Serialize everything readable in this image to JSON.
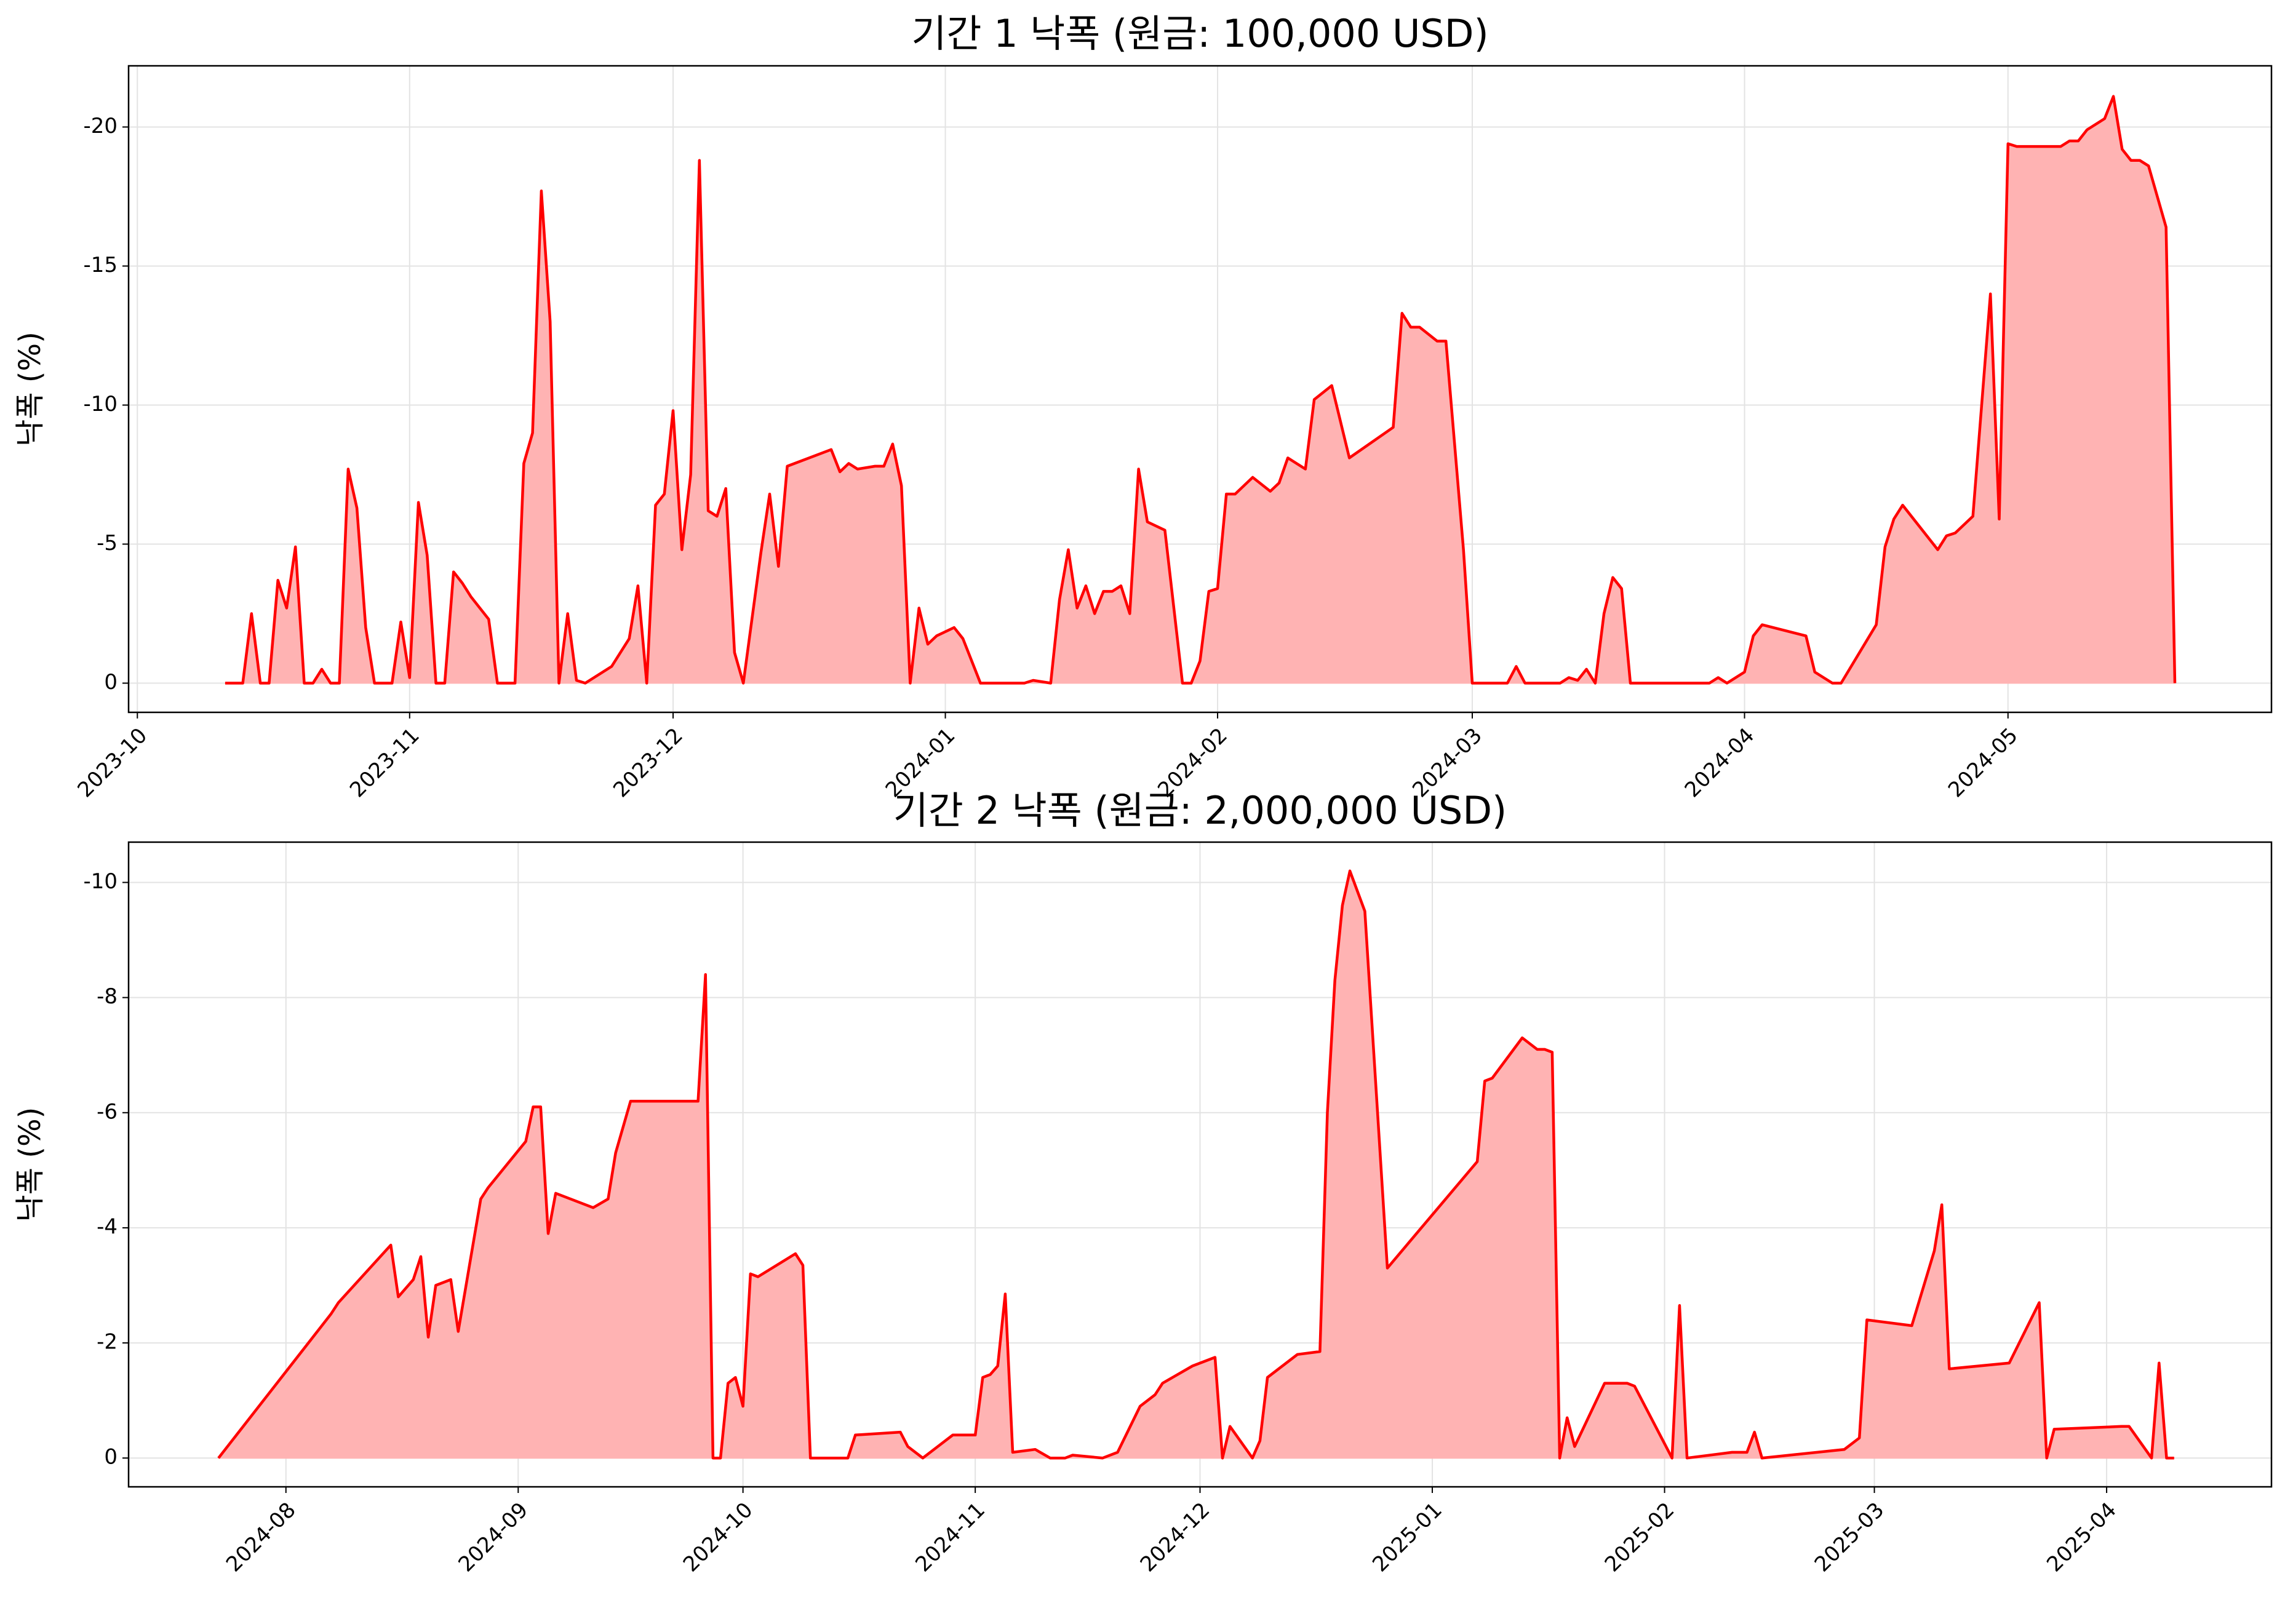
{
  "chart_data": [
    {
      "type": "area",
      "title": "기간 1 낙폭 (원금: 100,000 USD)",
      "y_label": "낙폭 (%)",
      "color": "red",
      "fill_color": "#ffb3b3",
      "grid": true,
      "xlim": [
        "2023-09-30",
        "2024-05-31"
      ],
      "xticks": [
        {
          "value": "2023-10-01",
          "label": "2023-10"
        },
        {
          "value": "2023-11-01",
          "label": "2023-11"
        },
        {
          "value": "2023-12-01",
          "label": "2023-12"
        },
        {
          "value": "2024-01-01",
          "label": "2024-01"
        },
        {
          "value": "2024-02-01",
          "label": "2024-02"
        },
        {
          "value": "2024-03-01",
          "label": "2024-03"
        },
        {
          "value": "2024-04-01",
          "label": "2024-04"
        },
        {
          "value": "2024-05-01",
          "label": "2024-05"
        }
      ],
      "ylim": [
        1.05,
        -22.2
      ],
      "yticks": [
        -20,
        -15,
        -10,
        -5,
        0
      ],
      "x": [
        "2023-10-11",
        "2023-10-13",
        "2023-10-14",
        "2023-10-15",
        "2023-10-16",
        "2023-10-17",
        "2023-10-18",
        "2023-10-19",
        "2023-10-20",
        "2023-10-21",
        "2023-10-22",
        "2023-10-23",
        "2023-10-24",
        "2023-10-25",
        "2023-10-26",
        "2023-10-27",
        "2023-10-28",
        "2023-10-30",
        "2023-10-31",
        "2023-11-01",
        "2023-11-02",
        "2023-11-03",
        "2023-11-04",
        "2023-11-05",
        "2023-11-06",
        "2023-11-07",
        "2023-11-08",
        "2023-11-10",
        "2023-11-11",
        "2023-11-13",
        "2023-11-14",
        "2023-11-15",
        "2023-11-16",
        "2023-11-17",
        "2023-11-18",
        "2023-11-19",
        "2023-11-20",
        "2023-11-21",
        "2023-11-24",
        "2023-11-26",
        "2023-11-27",
        "2023-11-28",
        "2023-11-29",
        "2023-11-30",
        "2023-12-01",
        "2023-12-02",
        "2023-12-03",
        "2023-12-04",
        "2023-12-05",
        "2023-12-06",
        "2023-12-07",
        "2023-12-08",
        "2023-12-09",
        "2023-12-11",
        "2023-12-12",
        "2023-12-13",
        "2023-12-14",
        "2023-12-19",
        "2023-12-20",
        "2023-12-21",
        "2023-12-22",
        "2023-12-24",
        "2023-12-25",
        "2023-12-26",
        "2023-12-27",
        "2023-12-28",
        "2023-12-29",
        "2023-12-30",
        "2023-12-31",
        "2024-01-02",
        "2024-01-03",
        "2024-01-05",
        "2024-01-10",
        "2024-01-11",
        "2024-01-13",
        "2024-01-14",
        "2024-01-15",
        "2024-01-16",
        "2024-01-17",
        "2024-01-18",
        "2024-01-19",
        "2024-01-20",
        "2024-01-21",
        "2024-01-22",
        "2024-01-23",
        "2024-01-24",
        "2024-01-26",
        "2024-01-28",
        "2024-01-29",
        "2024-01-30",
        "2024-01-31",
        "2024-02-01",
        "2024-02-02",
        "2024-02-03",
        "2024-02-05",
        "2024-02-07",
        "2024-02-08",
        "2024-02-09",
        "2024-02-11",
        "2024-02-12",
        "2024-02-14",
        "2024-02-16",
        "2024-02-21",
        "2024-02-22",
        "2024-02-23",
        "2024-02-24",
        "2024-02-26",
        "2024-02-27",
        "2024-02-29",
        "2024-03-01",
        "2024-03-05",
        "2024-03-06",
        "2024-03-07",
        "2024-03-11",
        "2024-03-12",
        "2024-03-13",
        "2024-03-14",
        "2024-03-15",
        "2024-03-16",
        "2024-03-17",
        "2024-03-18",
        "2024-03-19",
        "2024-03-28",
        "2024-03-29",
        "2024-03-30",
        "2024-04-01",
        "2024-04-02",
        "2024-04-03",
        "2024-04-08",
        "2024-04-09",
        "2024-04-11",
        "2024-04-12",
        "2024-04-16",
        "2024-04-17",
        "2024-04-18",
        "2024-04-19",
        "2024-04-23",
        "2024-04-24",
        "2024-04-25",
        "2024-04-27",
        "2024-04-29",
        "2024-04-30",
        "2024-05-01",
        "2024-05-02",
        "2024-05-07",
        "2024-05-08",
        "2024-05-09",
        "2024-05-10",
        "2024-05-12",
        "2024-05-13",
        "2024-05-14",
        "2024-05-15",
        "2024-05-16",
        "2024-05-17",
        "2024-05-19",
        "2024-05-20"
      ],
      "values": [
        0,
        0,
        -2.5,
        0,
        0,
        -3.7,
        -2.7,
        -4.9,
        0,
        0,
        -0.5,
        0,
        0,
        -7.7,
        -6.3,
        -2,
        0,
        0,
        -2.2,
        -0.2,
        -6.5,
        -4.6,
        0,
        0,
        -4,
        -3.6,
        -3.1,
        -2.3,
        0,
        0,
        -7.9,
        -9,
        -17.7,
        -13,
        0,
        -2.5,
        -0.1,
        0,
        -0.6,
        -1.6,
        -3.5,
        0,
        -6.4,
        -6.8,
        -9.8,
        -4.8,
        -7.5,
        -18.8,
        -6.2,
        -6,
        -7,
        -1.1,
        0,
        -4.7,
        -6.8,
        -4.2,
        -7.8,
        -8.4,
        -7.6,
        -7.9,
        -7.7,
        -7.8,
        -7.8,
        -8.6,
        -7.1,
        0,
        -2.7,
        -1.4,
        -1.7,
        -2,
        -1.6,
        0,
        0,
        -0.1,
        0,
        -3,
        -4.8,
        -2.7,
        -3.5,
        -2.5,
        -3.3,
        -3.3,
        -3.5,
        -2.5,
        -7.7,
        -5.8,
        -5.5,
        0,
        0,
        -0.8,
        -3.3,
        -3.4,
        -6.8,
        -6.8,
        -7.4,
        -6.9,
        -7.2,
        -8.1,
        -7.7,
        -10.2,
        -10.7,
        -8.1,
        -9.2,
        -13.3,
        -12.8,
        -12.8,
        -12.3,
        -12.3,
        -4.8,
        0,
        0,
        -0.6,
        0,
        0,
        -0.2,
        -0.1,
        -0.5,
        0,
        -2.5,
        -3.8,
        -3.4,
        0,
        0,
        -0.2,
        0,
        -0.4,
        -1.7,
        -2.1,
        -1.7,
        -0.4,
        0,
        0,
        -2.1,
        -4.9,
        -5.9,
        -6.4,
        -4.8,
        -5.3,
        -5.4,
        -6,
        -14,
        -5.9,
        -19.4,
        -19.3,
        -19.3,
        -19.5,
        -19.5,
        -19.9,
        -20.3,
        -21.1,
        -19.2,
        -18.8,
        -18.8,
        -18.6,
        -16.4,
        0
      ]
    },
    {
      "type": "area",
      "title": "기간 2 낙폭 (원금: 2,000,000 USD)",
      "y_label": "낙폭 (%)",
      "color": "red",
      "fill_color": "#ffb3b3",
      "grid": true,
      "xlim": [
        "2024-07-11",
        "2025-04-23"
      ],
      "xticks": [
        {
          "value": "2024-08-01",
          "label": "2024-08"
        },
        {
          "value": "2024-09-01",
          "label": "2024-09"
        },
        {
          "value": "2024-10-01",
          "label": "2024-10"
        },
        {
          "value": "2024-11-01",
          "label": "2024-11"
        },
        {
          "value": "2024-12-01",
          "label": "2024-12"
        },
        {
          "value": "2025-01-01",
          "label": "2025-01"
        },
        {
          "value": "2025-02-01",
          "label": "2025-02"
        },
        {
          "value": "2025-03-01",
          "label": "2025-03"
        },
        {
          "value": "2025-04-01",
          "label": "2025-04"
        }
      ],
      "ylim": [
        0.5,
        -10.7
      ],
      "yticks": [
        -10,
        -8,
        -6,
        -4,
        -2,
        0
      ],
      "x": [
        "2024-07-23",
        "2024-08-07",
        "2024-08-08",
        "2024-08-15",
        "2024-08-16",
        "2024-08-18",
        "2024-08-19",
        "2024-08-20",
        "2024-08-21",
        "2024-08-23",
        "2024-08-24",
        "2024-08-27",
        "2024-08-28",
        "2024-09-02",
        "2024-09-03",
        "2024-09-04",
        "2024-09-05",
        "2024-09-06",
        "2024-09-11",
        "2024-09-13",
        "2024-09-14",
        "2024-09-16",
        "2024-09-25",
        "2024-09-26",
        "2024-09-27",
        "2024-09-28",
        "2024-09-29",
        "2024-09-30",
        "2024-10-01",
        "2024-10-02",
        "2024-10-03",
        "2024-10-08",
        "2024-10-09",
        "2024-10-10",
        "2024-10-15",
        "2024-10-16",
        "2024-10-22",
        "2024-10-23",
        "2024-10-25",
        "2024-10-29",
        "2024-11-01",
        "2024-11-02",
        "2024-11-03",
        "2024-11-04",
        "2024-11-05",
        "2024-11-06",
        "2024-11-09",
        "2024-11-11",
        "2024-11-13",
        "2024-11-14",
        "2024-11-18",
        "2024-11-20",
        "2024-11-23",
        "2024-11-25",
        "2024-11-26",
        "2024-11-30",
        "2024-12-03",
        "2024-12-04",
        "2024-12-05",
        "2024-12-08",
        "2024-12-09",
        "2024-12-10",
        "2024-12-14",
        "2024-12-17",
        "2024-12-18",
        "2024-12-19",
        "2024-12-20",
        "2024-12-21",
        "2024-12-23",
        "2024-12-26",
        "2025-01-07",
        "2025-01-08",
        "2025-01-09",
        "2025-01-13",
        "2025-01-15",
        "2025-01-16",
        "2025-01-17",
        "2025-01-18",
        "2025-01-19",
        "2025-01-20",
        "2025-01-24",
        "2025-01-27",
        "2025-01-28",
        "2025-02-02",
        "2025-02-03",
        "2025-02-04",
        "2025-02-10",
        "2025-02-12",
        "2025-02-13",
        "2025-02-14",
        "2025-02-25",
        "2025-02-27",
        "2025-02-28",
        "2025-03-06",
        "2025-03-09",
        "2025-03-10",
        "2025-03-11",
        "2025-03-19",
        "2025-03-23",
        "2025-03-24",
        "2025-03-25",
        "2025-04-03",
        "2025-04-04",
        "2025-04-07",
        "2025-04-08",
        "2025-04-09",
        "2025-04-10"
      ],
      "values": [
        0,
        -2.5,
        -2.7,
        -3.7,
        -2.8,
        -3.1,
        -3.5,
        -2.1,
        -3.0,
        -3.1,
        -2.2,
        -4.5,
        -4.7,
        -5.5,
        -6.1,
        -6.1,
        -3.9,
        -4.6,
        -4.35,
        -4.5,
        -5.3,
        -6.2,
        -6.2,
        -8.4,
        0,
        0,
        -1.3,
        -1.4,
        -0.9,
        -3.2,
        -3.15,
        -3.55,
        -3.35,
        0,
        0,
        -0.4,
        -0.45,
        -0.2,
        0,
        -0.4,
        -0.4,
        -1.4,
        -1.45,
        -1.6,
        -2.85,
        -0.1,
        -0.15,
        0,
        0,
        -0.05,
        0,
        -0.1,
        -0.9,
        -1.1,
        -1.3,
        -1.6,
        -1.75,
        0,
        -0.55,
        0,
        -0.3,
        -1.4,
        -1.8,
        -1.85,
        -6,
        -8.3,
        -9.6,
        -10.2,
        -9.5,
        -3.3,
        -5.15,
        -6.55,
        -6.6,
        -7.3,
        -7.1,
        -7.1,
        -7.05,
        0,
        -0.7,
        -0.2,
        -1.3,
        -1.3,
        -1.25,
        0,
        -2.65,
        0,
        -0.1,
        -0.1,
        -0.45,
        0,
        -0.15,
        -0.35,
        -2.4,
        -2.3,
        -3.6,
        -4.4,
        -1.55,
        -1.65,
        -2.7,
        0,
        -0.5,
        -0.55,
        -0.55,
        0,
        -1.65,
        0,
        0
      ]
    }
  ]
}
